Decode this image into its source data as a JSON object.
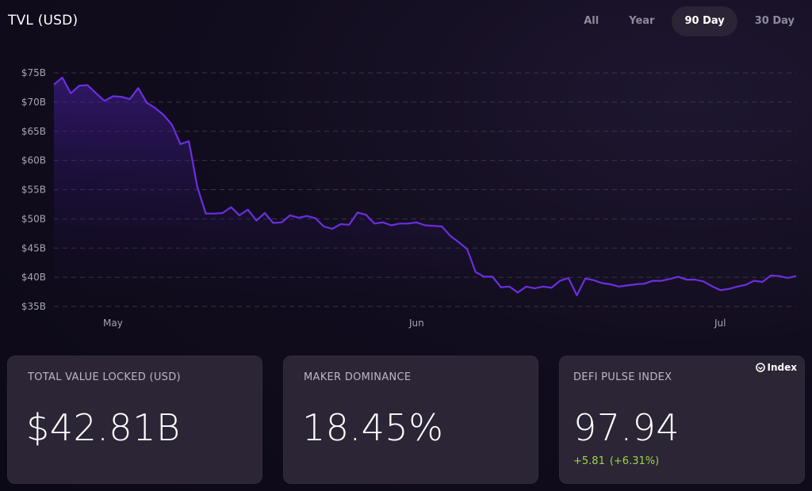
{
  "header": {
    "title": "TVL (USD)",
    "tabs": [
      {
        "label": "All",
        "active": false
      },
      {
        "label": "Year",
        "active": false
      },
      {
        "label": "90 Day",
        "active": true
      },
      {
        "label": "30 Day",
        "active": false
      }
    ]
  },
  "chart_data": {
    "type": "area",
    "title": "TVL (USD)",
    "xlabel": "",
    "ylabel": "",
    "x_tick_labels": [
      "May",
      "Jun",
      "Jul"
    ],
    "y_tick_labels": [
      "$75B",
      "$70B",
      "$65B",
      "$60B",
      "$55B",
      "$50B",
      "$45B",
      "$40B",
      "$35B"
    ],
    "y_ticks": [
      75,
      70,
      65,
      60,
      55,
      50,
      45,
      40,
      35
    ],
    "ylim": [
      34,
      76
    ],
    "grid": true,
    "line_color": "#6b2fe0",
    "series": [
      {
        "values": [
          73.0,
          74.2,
          71.5,
          72.8,
          72.9,
          71.5,
          70.2,
          71.0,
          70.9,
          70.5,
          72.4,
          69.9,
          69.0,
          67.8,
          66.1,
          62.8,
          63.3,
          55.5,
          50.9,
          50.9,
          51.0,
          52.0,
          50.6,
          51.6,
          49.7,
          51.0,
          49.3,
          49.4,
          50.6,
          50.2,
          50.5,
          50.1,
          48.7,
          48.3,
          49.1,
          49.0,
          51.1,
          50.7,
          49.2,
          49.4,
          48.9,
          49.2,
          49.2,
          49.4,
          48.9,
          48.8,
          48.7,
          47.1,
          46.0,
          44.8,
          40.9,
          40.1,
          40.1,
          38.3,
          38.4,
          37.4,
          38.4,
          38.1,
          38.4,
          38.2,
          39.4,
          39.9,
          36.9,
          39.8,
          39.5,
          39.0,
          38.8,
          38.4,
          38.6,
          38.8,
          38.9,
          39.4,
          39.4,
          39.7,
          40.1,
          39.6,
          39.6,
          39.3,
          38.5,
          37.8,
          38.0,
          38.4,
          38.7,
          39.4,
          39.2,
          40.3,
          40.2,
          39.9,
          40.2
        ]
      }
    ]
  },
  "cards": [
    {
      "label": "TOTAL VALUE LOCKED (USD)",
      "value": "$42.81B"
    },
    {
      "label": "MAKER DOMINANCE",
      "value": "18.45%"
    },
    {
      "label": "DEFI PULSE INDEX",
      "value": "97.94",
      "change": "+5.81",
      "change_pct": "(+6.31%)",
      "badge": "Index",
      "badge_icon": "index-logo-icon"
    }
  ],
  "colors": {
    "accent": "#6b2fe0",
    "positive": "#9fd44b",
    "card_bg": "#2b2535",
    "background": "#120d1e"
  }
}
